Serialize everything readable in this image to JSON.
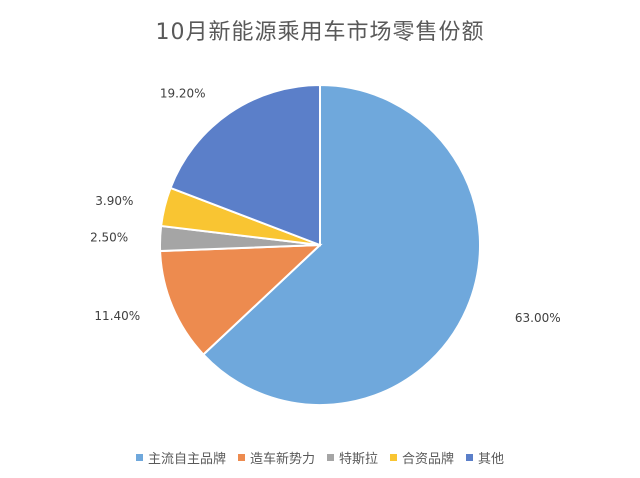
{
  "chart_data": {
    "type": "pie",
    "title": "10月新能源乘用车市场零售份额",
    "categories": [
      "主流自主品牌",
      "造车新势力",
      "特斯拉",
      "合资品牌",
      "其他"
    ],
    "values": [
      63.0,
      11.4,
      2.5,
      3.9,
      19.2
    ],
    "data_labels": [
      "63.00%",
      "11.40%",
      "2.50%",
      "3.90%",
      "19.20%"
    ],
    "colors": [
      "#6fa8dc",
      "#ed8b4f",
      "#a5a5a5",
      "#f9c532",
      "#5b7fc9"
    ],
    "start_angle_deg": 0,
    "direction": "clockwise",
    "legend_position": "bottom"
  }
}
